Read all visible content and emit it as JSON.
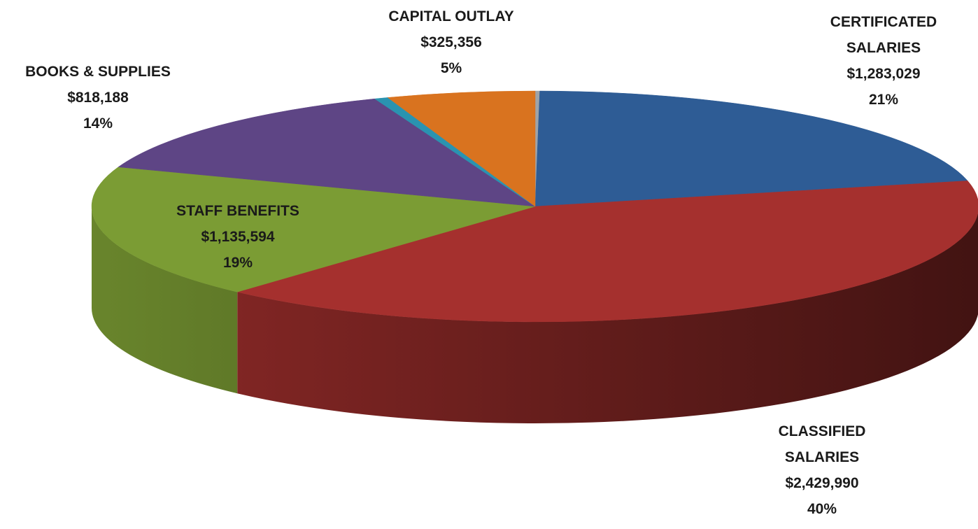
{
  "chart_data": {
    "type": "pie3d",
    "categories": [
      null,
      "CERTIFICATED SALARIES",
      "CLASSIFIED SALARIES",
      "STAFF BENEFITS",
      "BOOKS & SUPPLIES",
      null,
      "CAPITAL OUTLAY"
    ],
    "values": [
      10000,
      1283029,
      2429990,
      1135594,
      818188,
      30000,
      325356
    ],
    "value_labels": [
      null,
      "$1,283,029",
      "$2,429,990",
      "$1,135,594",
      "$818,188",
      null,
      "$325,356"
    ],
    "percents": [
      null,
      21,
      40,
      19,
      14,
      null,
      5
    ],
    "percent_labels": [
      null,
      "21%",
      "40%",
      "19%",
      "14%",
      null,
      "5%"
    ],
    "colors": [
      "#9ea3a8",
      "#2e5c95",
      "#a5302e",
      "#7b9c34",
      "#5e4585",
      "#2a93b0",
      "#d9731f"
    ]
  }
}
